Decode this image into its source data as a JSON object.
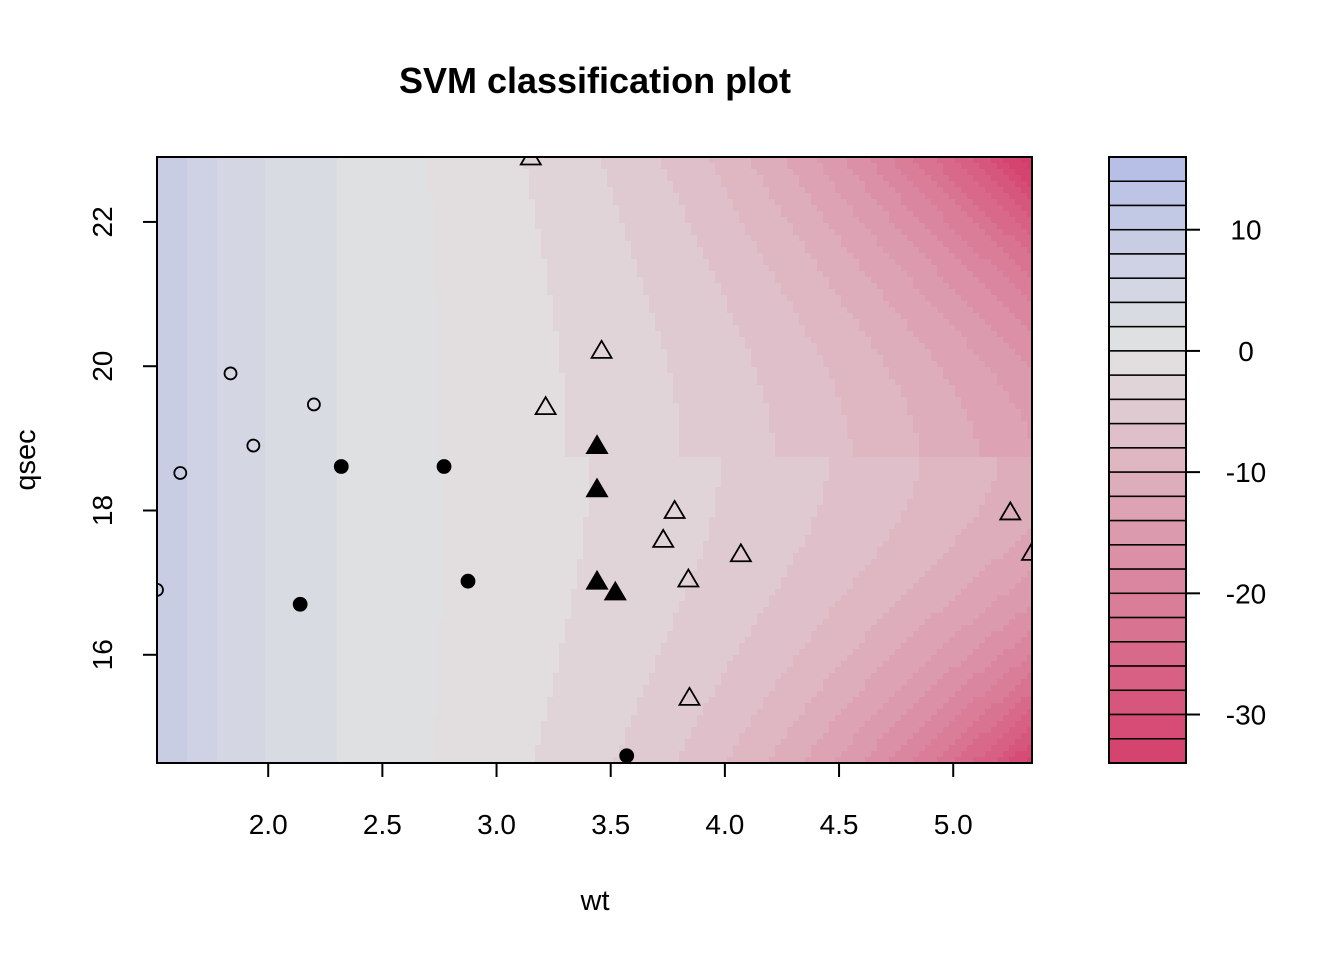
{
  "chart_data": {
    "type": "scatter",
    "subtype": "svm-classification-contour",
    "title": "SVM classification plot",
    "xlabel": "wt",
    "ylabel": "qsec",
    "xlim": [
      1.513,
      5.345
    ],
    "ylim": [
      14.5,
      22.9
    ],
    "x_ticks": [
      "2.0",
      "2.5",
      "3.0",
      "3.5",
      "4.0",
      "4.5",
      "5.0"
    ],
    "y_ticks": [
      "16",
      "18",
      "20",
      "22"
    ],
    "grid": false,
    "legend": "colorbar-right",
    "colorbar": {
      "range": [
        -34,
        16
      ],
      "levels": [
        16,
        14,
        12,
        10,
        8,
        6,
        4,
        2,
        0,
        -2,
        -4,
        -6,
        -8,
        -10,
        -12,
        -14,
        -16,
        -18,
        -20,
        -22,
        -24,
        -26,
        -28,
        -30,
        -32,
        -34
      ],
      "ticks": [
        "10",
        "0",
        "-10",
        "-20",
        "-30"
      ],
      "colors": {
        "high": "#b4bde6",
        "mid": "#e2e2e2",
        "low": "#d53e6c"
      }
    },
    "points": [
      {
        "x": 1.513,
        "y": 16.9,
        "marker": "open-circle"
      },
      {
        "x": 1.615,
        "y": 18.52,
        "marker": "open-circle"
      },
      {
        "x": 1.835,
        "y": 19.9,
        "marker": "open-circle"
      },
      {
        "x": 1.935,
        "y": 18.9,
        "marker": "open-circle"
      },
      {
        "x": 2.2,
        "y": 19.47,
        "marker": "open-circle"
      },
      {
        "x": 2.14,
        "y": 16.7,
        "marker": "filled-circle"
      },
      {
        "x": 2.32,
        "y": 18.61,
        "marker": "filled-circle"
      },
      {
        "x": 2.77,
        "y": 18.61,
        "marker": "filled-circle"
      },
      {
        "x": 2.875,
        "y": 17.02,
        "marker": "filled-circle"
      },
      {
        "x": 3.57,
        "y": 14.6,
        "marker": "filled-circle"
      },
      {
        "x": 3.44,
        "y": 18.9,
        "marker": "filled-triangle"
      },
      {
        "x": 3.44,
        "y": 18.3,
        "marker": "filled-triangle"
      },
      {
        "x": 3.44,
        "y": 17.02,
        "marker": "filled-triangle"
      },
      {
        "x": 3.52,
        "y": 16.87,
        "marker": "filled-triangle"
      },
      {
        "x": 3.15,
        "y": 22.9,
        "marker": "open-triangle"
      },
      {
        "x": 3.46,
        "y": 20.22,
        "marker": "open-triangle"
      },
      {
        "x": 3.215,
        "y": 19.44,
        "marker": "open-triangle"
      },
      {
        "x": 3.78,
        "y": 18.0,
        "marker": "open-triangle"
      },
      {
        "x": 3.73,
        "y": 17.6,
        "marker": "open-triangle"
      },
      {
        "x": 3.84,
        "y": 17.05,
        "marker": "open-triangle"
      },
      {
        "x": 4.07,
        "y": 17.4,
        "marker": "open-triangle"
      },
      {
        "x": 3.845,
        "y": 15.41,
        "marker": "open-triangle"
      },
      {
        "x": 5.25,
        "y": 17.98,
        "marker": "open-triangle"
      },
      {
        "x": 5.345,
        "y": 17.42,
        "marker": "open-triangle"
      }
    ]
  }
}
